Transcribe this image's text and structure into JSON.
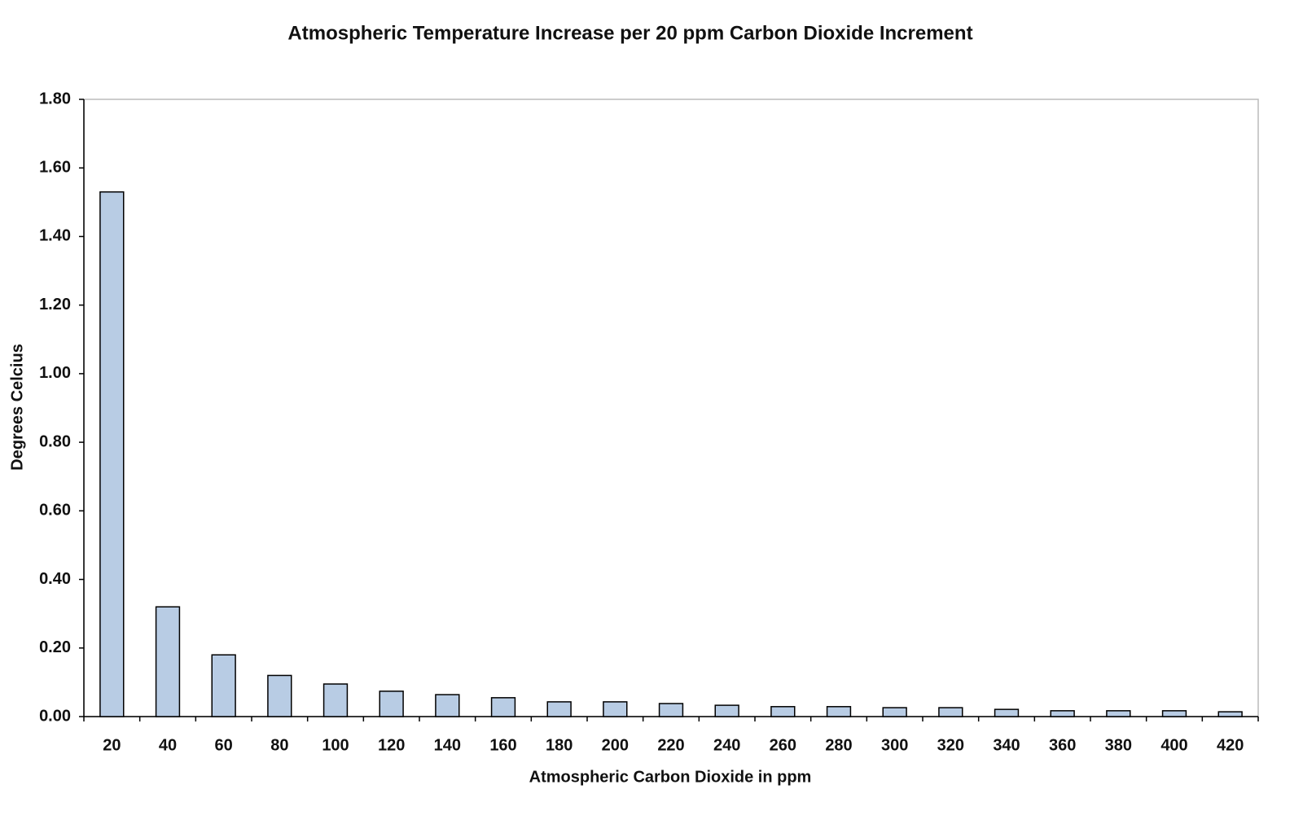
{
  "chart_data": {
    "type": "bar",
    "title": "Atmospheric Temperature Increase per 20 ppm Carbon Dioxide Increment",
    "x_label": "Atmospheric Carbon Dioxide in ppm",
    "y_label": "Degrees Celcius",
    "categories": [
      "20",
      "40",
      "60",
      "80",
      "100",
      "120",
      "140",
      "160",
      "180",
      "200",
      "220",
      "240",
      "260",
      "280",
      "300",
      "320",
      "340",
      "360",
      "380",
      "400",
      "420"
    ],
    "values": [
      1.53,
      0.32,
      0.18,
      0.12,
      0.095,
      0.074,
      0.064,
      0.055,
      0.043,
      0.043,
      0.038,
      0.033,
      0.029,
      0.029,
      0.026,
      0.026,
      0.021,
      0.017,
      0.017,
      0.017,
      0.014
    ],
    "color": "#b8cce4",
    "ylim": [
      0,
      1.8
    ],
    "yticks": [
      {
        "value": 0,
        "label": "0.00"
      },
      {
        "value": 0.2,
        "label": "0.20"
      },
      {
        "value": 0.4,
        "label": "0.40"
      },
      {
        "value": 0.6,
        "label": "0.60"
      },
      {
        "value": 0.8,
        "label": "0.80"
      },
      {
        "value": 1,
        "label": "1.00"
      },
      {
        "value": 1.2,
        "label": "1.20"
      },
      {
        "value": 1.4,
        "label": "1.40"
      },
      {
        "value": 1.6,
        "label": "1.60"
      },
      {
        "value": 1.8,
        "label": "1.80"
      }
    ],
    "grid": false
  }
}
